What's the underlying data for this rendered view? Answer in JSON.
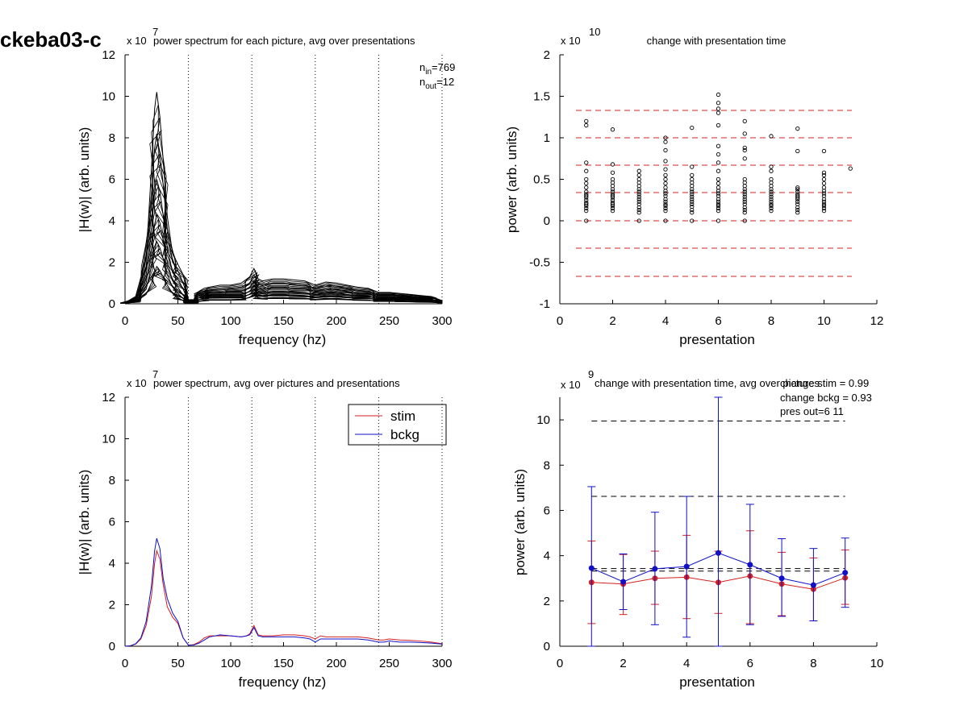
{
  "figure_label": "ckeba03-c",
  "chart_data": [
    {
      "type": "line",
      "title": "power spectrum for each picture, avg over presentations",
      "xlabel": "frequency (hz)",
      "ylabel": "|H(w)| (arb. units)",
      "exponent_prefix": "x 10",
      "exponent": "7",
      "xlim": [
        0,
        300
      ],
      "ylim": [
        0,
        12
      ],
      "xticks": [
        "0",
        "50",
        "100",
        "150",
        "200",
        "250",
        "300"
      ],
      "yticks": [
        "0",
        "2",
        "4",
        "6",
        "8",
        "10",
        "12"
      ],
      "vlines_x": [
        60,
        120,
        180,
        240,
        300
      ],
      "annotation": {
        "n_in_label": "n",
        "n_in_sub": "in",
        "n_in_value": "=769",
        "n_out_label": "n",
        "n_out_sub": "out",
        "n_out_value": "=12"
      },
      "series_color": "#000000",
      "note": "one trace per picture (769 traces); envelope of representative traces drawn",
      "x": [
        0,
        10,
        20,
        25,
        28,
        30,
        33,
        36,
        40,
        45,
        50,
        55,
        60,
        65,
        70,
        75,
        80,
        90,
        100,
        110,
        118,
        122,
        126,
        130,
        140,
        150,
        160,
        170,
        180,
        190,
        200,
        210,
        220,
        230,
        240,
        250,
        260,
        270,
        280,
        290,
        300
      ],
      "series": [
        {
          "values": [
            0.05,
            0.35,
            2.2,
            6.5,
            9.4,
            10.2,
            9.0,
            7.0,
            4.2,
            2.4,
            1.9,
            1.4,
            0.2,
            0.2,
            0.6,
            0.75,
            0.8,
            0.9,
            0.9,
            1.0,
            1.3,
            1.7,
            1.2,
            1.1,
            1.2,
            1.2,
            1.15,
            1.1,
            0.9,
            1.05,
            1.0,
            0.9,
            0.8,
            0.75,
            0.55,
            0.55,
            0.5,
            0.45,
            0.4,
            0.35,
            0.15
          ]
        },
        {
          "values": [
            0.05,
            0.3,
            1.8,
            5.0,
            7.5,
            8.2,
            7.2,
            5.8,
            3.6,
            2.0,
            1.6,
            1.0,
            0.15,
            0.2,
            0.5,
            0.6,
            0.65,
            0.7,
            0.75,
            0.8,
            1.0,
            1.4,
            1.0,
            0.9,
            1.0,
            1.0,
            0.95,
            0.9,
            0.75,
            0.9,
            0.85,
            0.75,
            0.65,
            0.6,
            0.45,
            0.45,
            0.4,
            0.35,
            0.3,
            0.3,
            0.12
          ]
        },
        {
          "values": [
            0.04,
            0.25,
            1.4,
            3.6,
            5.4,
            6.0,
            5.4,
            4.3,
            2.7,
            1.5,
            1.2,
            0.7,
            0.12,
            0.15,
            0.4,
            0.5,
            0.55,
            0.55,
            0.6,
            0.6,
            0.8,
            1.1,
            0.8,
            0.7,
            0.8,
            0.8,
            0.75,
            0.75,
            0.6,
            0.7,
            0.7,
            0.6,
            0.5,
            0.5,
            0.35,
            0.35,
            0.3,
            0.3,
            0.25,
            0.22,
            0.1
          ]
        },
        {
          "values": [
            0.03,
            0.2,
            1.0,
            2.6,
            3.8,
            4.3,
            3.9,
            3.1,
            2.0,
            1.1,
            0.8,
            0.4,
            0.1,
            0.1,
            0.3,
            0.4,
            0.42,
            0.45,
            0.45,
            0.45,
            0.6,
            0.9,
            0.6,
            0.55,
            0.6,
            0.6,
            0.58,
            0.55,
            0.45,
            0.55,
            0.55,
            0.45,
            0.4,
            0.38,
            0.28,
            0.28,
            0.25,
            0.22,
            0.2,
            0.18,
            0.08
          ]
        },
        {
          "values": [
            0.02,
            0.15,
            0.7,
            1.8,
            2.6,
            3.0,
            2.7,
            2.2,
            1.4,
            0.8,
            0.5,
            0.25,
            0.08,
            0.08,
            0.2,
            0.3,
            0.32,
            0.33,
            0.33,
            0.33,
            0.45,
            0.7,
            0.45,
            0.4,
            0.45,
            0.45,
            0.42,
            0.4,
            0.33,
            0.4,
            0.4,
            0.33,
            0.3,
            0.28,
            0.2,
            0.2,
            0.18,
            0.16,
            0.14,
            0.12,
            0.06
          ]
        },
        {
          "values": [
            0.02,
            0.1,
            0.45,
            1.0,
            1.5,
            1.8,
            1.6,
            1.3,
            0.9,
            0.5,
            0.3,
            0.15,
            0.05,
            0.05,
            0.12,
            0.18,
            0.2,
            0.2,
            0.2,
            0.22,
            0.3,
            0.5,
            0.3,
            0.26,
            0.3,
            0.3,
            0.28,
            0.27,
            0.22,
            0.26,
            0.26,
            0.22,
            0.2,
            0.18,
            0.13,
            0.13,
            0.12,
            0.1,
            0.09,
            0.08,
            0.04
          ]
        }
      ]
    },
    {
      "type": "scatter",
      "title": "change with presentation time",
      "xlabel": "presentation",
      "ylabel": "power (arb. units)",
      "exponent_prefix": "x 10",
      "exponent": "10",
      "xlim": [
        0,
        12
      ],
      "ylim": [
        -1,
        2
      ],
      "xticks": [
        "0",
        "2",
        "4",
        "6",
        "8",
        "10",
        "12"
      ],
      "yticks": [
        "-1",
        "-0.5",
        "0",
        "0.5",
        "1",
        "1.5",
        "2"
      ],
      "hlines_y": [
        1.33,
        1.0,
        0.67,
        0.34,
        0.0,
        -0.33,
        -0.67
      ],
      "hline_color": "#d42020",
      "marker": "open circle",
      "points": [
        {
          "x": 1,
          "y": [
            0,
            0.12,
            0.15,
            0.18,
            0.2,
            0.22,
            0.25,
            0.28,
            0.3,
            0.32,
            0.35,
            0.4,
            0.45,
            0.5,
            0.6,
            0.7,
            1.15,
            1.2
          ]
        },
        {
          "x": 2,
          "y": [
            0.12,
            0.15,
            0.18,
            0.2,
            0.22,
            0.25,
            0.28,
            0.3,
            0.32,
            0.35,
            0.38,
            0.42,
            0.46,
            0.5,
            0.58,
            0.68,
            1.1
          ]
        },
        {
          "x": 3,
          "y": [
            0,
            0.1,
            0.13,
            0.16,
            0.2,
            0.23,
            0.26,
            0.29,
            0.32,
            0.35,
            0.38,
            0.42,
            0.46,
            0.5,
            0.55,
            0.6
          ]
        },
        {
          "x": 4,
          "y": [
            0,
            0.12,
            0.15,
            0.18,
            0.2,
            0.23,
            0.26,
            0.3,
            0.33,
            0.36,
            0.4,
            0.45,
            0.5,
            0.55,
            0.62,
            0.72,
            0.85,
            0.95,
            1.0
          ]
        },
        {
          "x": 5,
          "y": [
            0,
            0.1,
            0.13,
            0.17,
            0.2,
            0.23,
            0.26,
            0.29,
            0.32,
            0.35,
            0.38,
            0.42,
            0.46,
            0.5,
            0.55,
            0.65,
            1.12
          ]
        },
        {
          "x": 6,
          "y": [
            0,
            0.12,
            0.15,
            0.18,
            0.2,
            0.23,
            0.26,
            0.3,
            0.33,
            0.36,
            0.4,
            0.45,
            0.5,
            0.6,
            0.7,
            0.8,
            0.9,
            1.15,
            1.3,
            1.35,
            1.42,
            1.52
          ]
        },
        {
          "x": 7,
          "y": [
            0,
            0.1,
            0.13,
            0.16,
            0.2,
            0.23,
            0.26,
            0.29,
            0.32,
            0.35,
            0.38,
            0.42,
            0.46,
            0.5,
            0.75,
            0.85,
            0.88,
            1.05,
            1.2
          ]
        },
        {
          "x": 8,
          "y": [
            0.12,
            0.15,
            0.18,
            0.2,
            0.23,
            0.26,
            0.29,
            0.32,
            0.35,
            0.38,
            0.42,
            0.46,
            0.5,
            0.6,
            0.65,
            1.02
          ]
        },
        {
          "x": 9,
          "y": [
            0.1,
            0.13,
            0.16,
            0.2,
            0.23,
            0.26,
            0.28,
            0.3,
            0.32,
            0.35,
            0.38,
            0.4,
            0.84,
            1.11
          ]
        },
        {
          "x": 10,
          "y": [
            0.12,
            0.15,
            0.18,
            0.2,
            0.23,
            0.26,
            0.3,
            0.33,
            0.36,
            0.4,
            0.45,
            0.5,
            0.55,
            0.58,
            0.84
          ]
        },
        {
          "x": 11,
          "y": [
            0.63
          ]
        }
      ]
    },
    {
      "type": "line",
      "title": "power spectrum, avg over pictures and presentations",
      "xlabel": "frequency (hz)",
      "ylabel": "|H(w)| (arb. units)",
      "exponent_prefix": "x 10",
      "exponent": "7",
      "xlim": [
        0,
        300
      ],
      "ylim": [
        0,
        12
      ],
      "xticks": [
        "0",
        "50",
        "100",
        "150",
        "200",
        "250",
        "300"
      ],
      "yticks": [
        "0",
        "2",
        "4",
        "6",
        "8",
        "10",
        "12"
      ],
      "vlines_x": [
        60,
        120,
        180,
        240,
        300
      ],
      "legend_position": "top-right",
      "x": [
        0,
        5,
        10,
        15,
        20,
        25,
        28,
        30,
        33,
        36,
        40,
        45,
        50,
        55,
        60,
        65,
        70,
        75,
        80,
        90,
        100,
        110,
        115,
        118,
        122,
        126,
        130,
        140,
        150,
        160,
        170,
        175,
        180,
        185,
        190,
        200,
        210,
        220,
        230,
        240,
        245,
        250,
        260,
        270,
        280,
        290,
        300
      ],
      "series": [
        {
          "name": "stim",
          "color": "#d42020",
          "values": [
            0.0,
            0.02,
            0.1,
            0.35,
            1.0,
            2.4,
            4.0,
            4.6,
            4.2,
            3.0,
            1.9,
            1.4,
            1.1,
            0.4,
            0.05,
            0.08,
            0.2,
            0.4,
            0.5,
            0.5,
            0.5,
            0.45,
            0.5,
            0.6,
            1.0,
            0.55,
            0.5,
            0.5,
            0.55,
            0.55,
            0.5,
            0.45,
            0.35,
            0.5,
            0.45,
            0.45,
            0.45,
            0.45,
            0.4,
            0.3,
            0.3,
            0.35,
            0.3,
            0.28,
            0.25,
            0.2,
            0.12
          ]
        },
        {
          "name": "bckg",
          "color": "#1010c8",
          "values": [
            0.0,
            0.02,
            0.12,
            0.4,
            1.2,
            2.9,
            4.6,
            5.2,
            4.7,
            3.3,
            2.3,
            1.6,
            1.2,
            0.4,
            0.05,
            0.06,
            0.15,
            0.3,
            0.45,
            0.55,
            0.5,
            0.45,
            0.5,
            0.55,
            0.9,
            0.5,
            0.45,
            0.45,
            0.45,
            0.45,
            0.4,
            0.35,
            0.2,
            0.35,
            0.35,
            0.35,
            0.35,
            0.35,
            0.3,
            0.2,
            0.2,
            0.25,
            0.2,
            0.2,
            0.18,
            0.15,
            0.1
          ]
        }
      ]
    },
    {
      "type": "line",
      "title": "change with presentation time, avg over pictures",
      "xlabel": "presentation",
      "ylabel": "power (arb. units)",
      "exponent_prefix": "x 10",
      "exponent": "9",
      "xlim": [
        0,
        10
      ],
      "ylim": [
        0,
        11
      ],
      "xticks": [
        "0",
        "2",
        "4",
        "6",
        "8",
        "10"
      ],
      "yticks": [
        "0",
        "2",
        "4",
        "6",
        "8",
        "10"
      ],
      "annotations": [
        "change stim = 0.99",
        "change bckg = 0.93",
        "pres out=6 11"
      ],
      "hlines": [
        {
          "y": 9.95,
          "x_range": [
            1,
            9
          ]
        },
        {
          "y": 6.62,
          "x_range": [
            1,
            9
          ]
        },
        {
          "y": 3.32,
          "x_range": [
            1,
            9
          ]
        },
        {
          "y": 3.43,
          "x_range": [
            1,
            9
          ]
        }
      ],
      "x": [
        1,
        2,
        3,
        4,
        5,
        6,
        7,
        8,
        9
      ],
      "series": [
        {
          "name": "stim",
          "color": "#d42020",
          "values": [
            2.82,
            2.75,
            3.0,
            3.05,
            2.82,
            3.1,
            2.75,
            2.52,
            3.02
          ],
          "err_low": [
            1.0,
            1.4,
            1.85,
            1.22,
            1.45,
            1.0,
            1.35,
            1.12,
            1.85
          ],
          "err_high": [
            4.65,
            4.05,
            4.2,
            4.9,
            4.2,
            5.1,
            4.15,
            3.9,
            4.25
          ]
        },
        {
          "name": "bckg",
          "color": "#1010c8",
          "values": [
            3.45,
            2.85,
            3.42,
            3.52,
            4.12,
            3.6,
            3.0,
            2.7,
            3.25
          ],
          "err_low": [
            0.0,
            1.62,
            0.95,
            0.4,
            0.0,
            0.95,
            1.32,
            1.12,
            1.72
          ],
          "err_high": [
            7.05,
            4.08,
            5.92,
            6.62,
            11.0,
            6.27,
            4.75,
            4.32,
            4.78
          ]
        }
      ]
    }
  ]
}
